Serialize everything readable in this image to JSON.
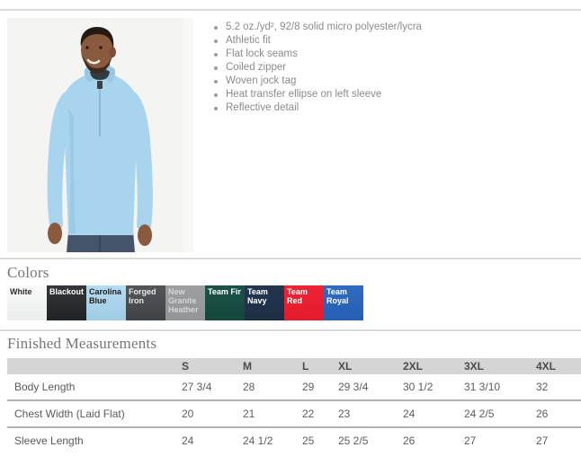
{
  "product": {
    "photo_alt": "Model wearing light blue quarter-zip pullover",
    "features": [
      "5.2 oz./yd², 92/8 solid micro polyester/lycra",
      "Athletic fit",
      "Flat lock seams",
      "Coiled zipper",
      "Woven jock tag",
      "Heat transfer ellipse on left sleeve",
      "Reflective detail"
    ]
  },
  "colors_section": {
    "title": "Colors",
    "swatches": [
      {
        "name": "White",
        "bg": "#eceded",
        "bg2": "#f9f9f9",
        "text": "#2e2e2e"
      },
      {
        "name": "Blackout",
        "bg": "#202325",
        "bg2": "#33373a",
        "text": "#ffffff"
      },
      {
        "name": "Carolina Blue",
        "bg": "#9fcbe4",
        "bg2": "#b5dcf1",
        "text": "#1d1d1d"
      },
      {
        "name": "Forged Iron",
        "bg": "#404346",
        "bg2": "#53575a",
        "text": "#e9e9e9"
      },
      {
        "name": "New Granite Heather",
        "bg": "#929496",
        "bg2": "#9da0a2",
        "text": "#d3d5d7"
      },
      {
        "name": "Team Fir",
        "bg": "#15473b",
        "bg2": "#1c5346",
        "text": "#ffffff"
      },
      {
        "name": "Team Navy",
        "bg": "#1d2d43",
        "bg2": "#243650",
        "text": "#ffffff"
      },
      {
        "name": "Team Red",
        "bg": "#e41b2d",
        "bg2": "#ee2435",
        "text": "#ffffff"
      },
      {
        "name": "Team Royal",
        "bg": "#265fb3",
        "bg2": "#2f6bc1",
        "text": "#ffffff"
      }
    ]
  },
  "measurements": {
    "title": "Finished Measurements",
    "columns": [
      "",
      "S",
      "M",
      "L",
      "XL",
      "2XL",
      "3XL",
      "4XL"
    ],
    "rows": [
      {
        "label": "Body Length",
        "values": [
          "27 3/4",
          "28",
          "29",
          "29 3/4",
          "30 1/2",
          "31 3/10",
          "32"
        ]
      },
      {
        "label": "Chest Width (Laid Flat)",
        "values": [
          "20",
          "21",
          "22",
          "23",
          "24",
          "24 2/5",
          "26"
        ]
      },
      {
        "label": "Sleeve Length",
        "values": [
          "24",
          "24 1/2",
          "25",
          "25 2/5",
          "26",
          "27",
          "27"
        ]
      }
    ]
  }
}
